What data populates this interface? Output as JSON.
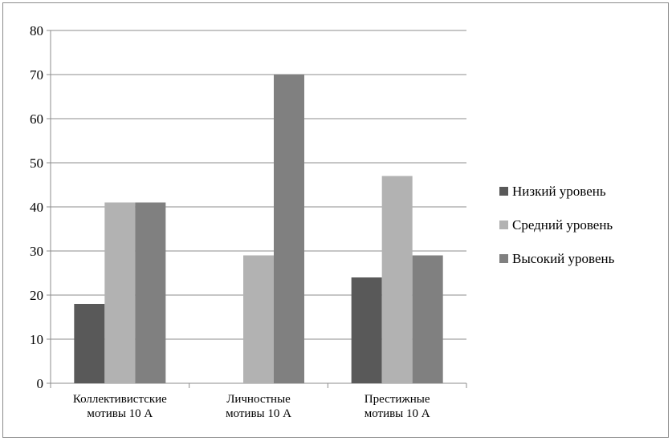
{
  "chart_data": {
    "type": "bar",
    "categories": [
      [
        "Коллективистские",
        "мотивы 10 А"
      ],
      [
        "Личностные",
        "мотивы 10 А"
      ],
      [
        "Престижные",
        "мотивы 10 А"
      ]
    ],
    "series": [
      {
        "name": "Низкий уровень",
        "values": [
          18,
          0,
          24
        ],
        "color": "#595959"
      },
      {
        "name": "Средний уровень",
        "values": [
          41,
          29,
          47
        ],
        "color": "#b2b2b2"
      },
      {
        "name": "Высокий уровень",
        "values": [
          41,
          70,
          29
        ],
        "color": "#808080"
      }
    ],
    "ylim": [
      0,
      80
    ],
    "yticks": [
      0,
      10,
      20,
      30,
      40,
      50,
      60,
      70,
      80
    ],
    "grid": true,
    "legend_position": "right",
    "title": "",
    "xlabel": "",
    "ylabel": ""
  }
}
